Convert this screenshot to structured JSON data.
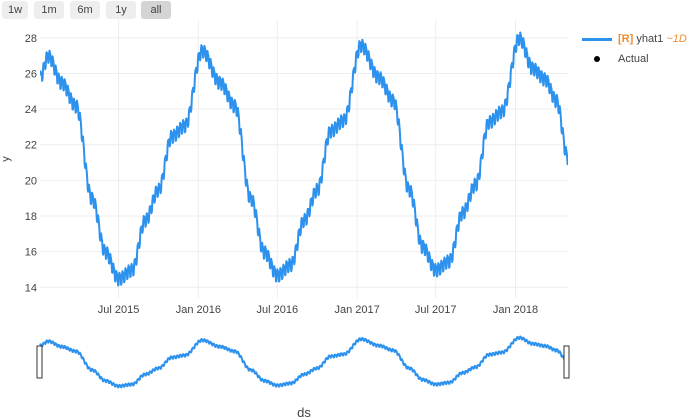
{
  "range_buttons": [
    {
      "label": "1w",
      "active": false
    },
    {
      "label": "1m",
      "active": false
    },
    {
      "label": "6m",
      "active": false
    },
    {
      "label": "1y",
      "active": false
    },
    {
      "label": "all",
      "active": true
    }
  ],
  "legend": {
    "series_tag": "[R]",
    "series_name": "yhat1",
    "series_freq": "~1D",
    "actual_label": "Actual",
    "tag_color": "#f28b30",
    "series_color": "#2d92ee",
    "actual_color": "#000000"
  },
  "chart_data": {
    "type": "line",
    "x_start": "2015-01-01",
    "x_end": "2018-05-02",
    "xlabel": "ds",
    "ylabel": "y",
    "ylim": [
      13.4,
      29.0
    ],
    "yticks": [
      14,
      16,
      18,
      20,
      22,
      24,
      26,
      28
    ],
    "xticks": [
      {
        "date": "2015-07-01",
        "label": "Jul 2015"
      },
      {
        "date": "2016-01-01",
        "label": "Jan 2016"
      },
      {
        "date": "2016-07-01",
        "label": "Jul 2016"
      },
      {
        "date": "2017-01-01",
        "label": "Jan 2017"
      },
      {
        "date": "2017-07-01",
        "label": "Jul 2017"
      },
      {
        "date": "2018-01-01",
        "label": "Jan 2018"
      }
    ],
    "grid": true,
    "legend_position": "top-right",
    "rangeslider": true,
    "series": [
      {
        "key": "yhat1",
        "color": "#2d92ee",
        "weekly_amplitude": 0.35,
        "anchors": [
          {
            "x": "2015-01-01",
            "y": 25.8
          },
          {
            "x": "2015-01-20",
            "y": 27.0
          },
          {
            "x": "2015-02-20",
            "y": 25.5
          },
          {
            "x": "2015-03-25",
            "y": 24.2
          },
          {
            "x": "2015-05-01",
            "y": 19.0
          },
          {
            "x": "2015-06-01",
            "y": 16.0
          },
          {
            "x": "2015-07-01",
            "y": 14.5
          },
          {
            "x": "2015-08-01",
            "y": 15.0
          },
          {
            "x": "2015-09-01",
            "y": 17.8
          },
          {
            "x": "2015-10-01",
            "y": 19.5
          },
          {
            "x": "2015-11-01",
            "y": 22.5
          },
          {
            "x": "2015-12-01",
            "y": 23.1
          },
          {
            "x": "2016-01-10",
            "y": 27.3
          },
          {
            "x": "2016-02-20",
            "y": 25.5
          },
          {
            "x": "2016-03-25",
            "y": 24.2
          },
          {
            "x": "2016-05-01",
            "y": 19.0
          },
          {
            "x": "2016-06-01",
            "y": 16.0
          },
          {
            "x": "2016-07-01",
            "y": 14.7
          },
          {
            "x": "2016-08-01",
            "y": 15.3
          },
          {
            "x": "2016-09-01",
            "y": 17.8
          },
          {
            "x": "2016-10-01",
            "y": 19.5
          },
          {
            "x": "2016-11-01",
            "y": 22.8
          },
          {
            "x": "2016-12-01",
            "y": 23.4
          },
          {
            "x": "2017-01-10",
            "y": 27.6
          },
          {
            "x": "2017-02-20",
            "y": 25.8
          },
          {
            "x": "2017-03-25",
            "y": 24.5
          },
          {
            "x": "2017-05-01",
            "y": 19.5
          },
          {
            "x": "2017-06-01",
            "y": 16.3
          },
          {
            "x": "2017-07-01",
            "y": 15.0
          },
          {
            "x": "2017-08-01",
            "y": 15.5
          },
          {
            "x": "2017-09-01",
            "y": 18.2
          },
          {
            "x": "2017-10-01",
            "y": 19.8
          },
          {
            "x": "2017-11-01",
            "y": 23.3
          },
          {
            "x": "2017-12-01",
            "y": 23.9
          },
          {
            "x": "2018-01-10",
            "y": 28.0
          },
          {
            "x": "2018-02-10",
            "y": 26.3
          },
          {
            "x": "2018-03-10",
            "y": 25.7
          },
          {
            "x": "2018-04-05",
            "y": 24.5
          },
          {
            "x": "2018-05-02",
            "y": 21.3
          }
        ]
      }
    ]
  }
}
